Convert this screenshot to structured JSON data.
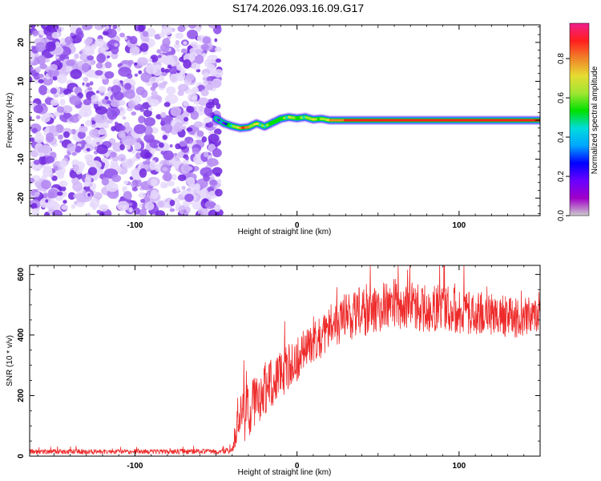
{
  "title": "S174.2026.093.16.09.G17",
  "colors": {
    "snr_line": "#ee2b2b",
    "axis": "#000000",
    "noise_dots": [
      "#e6d9fb",
      "#d2b8f8",
      "#b184f2",
      "#8d4dea",
      "#6e24de"
    ],
    "colormap": [
      "#cccccc",
      "#a000c8",
      "#6a00ff",
      "#0000ff",
      "#00a6ff",
      "#00dcdc",
      "#00e000",
      "#a0e632",
      "#e6dc32",
      "#f08228",
      "#ff1e1e",
      "#f01e8c"
    ]
  },
  "chart_data": [
    {
      "type": "heatmap",
      "title": "S174.2026.093.16.09.G17",
      "xlabel": "Height of straight line (km)",
      "ylabel": "Frequency (Hz)",
      "xlim": [
        -165,
        150
      ],
      "ylim": [
        -24.5,
        24.5
      ],
      "xticks": [
        -100,
        0,
        100
      ],
      "yticks": [
        -20,
        -10,
        0,
        10,
        20
      ],
      "noise_region_x": [
        -165,
        -48
      ],
      "ridge": {
        "x": [
          -50,
          -45,
          -40,
          -35,
          -30,
          -25,
          -20,
          -15,
          -10,
          -5,
          0,
          5,
          10,
          15,
          20,
          30,
          50,
          80,
          110,
          150
        ],
        "freq_hz": [
          0.5,
          -0.8,
          -1.5,
          -2.0,
          -1.8,
          -0.8,
          -1.6,
          -0.6,
          0.4,
          0.8,
          0.5,
          0.8,
          0.2,
          0.4,
          0.0,
          0.0,
          0.0,
          0.0,
          0.0,
          0.0
        ],
        "amplitude": [
          0.3,
          0.35,
          0.65,
          0.85,
          0.75,
          0.65,
          0.55,
          0.6,
          0.55,
          0.65,
          0.6,
          0.55,
          0.65,
          0.6,
          0.8,
          0.9,
          0.95,
          0.95,
          0.95,
          0.95
        ]
      },
      "colorbar": {
        "label": "Normalized spectral amplitude",
        "range": [
          0.0,
          0.98
        ],
        "ticks": [
          "0.0",
          "0.2",
          "0.4",
          "0.6",
          "0.8"
        ],
        "tick_values": [
          0.0,
          0.2,
          0.4,
          0.6,
          0.8
        ]
      }
    },
    {
      "type": "line",
      "xlabel": "Height of straight line (km)",
      "ylabel": "SNR (10 * v/v)",
      "xlim": [
        -165,
        150
      ],
      "ylim": [
        0,
        630
      ],
      "xticks": [
        -100,
        0,
        100
      ],
      "yticks": [
        0,
        200,
        400,
        600
      ],
      "series": [
        {
          "name": "SNR",
          "x": [
            -165,
            -100,
            -50,
            -40,
            -39,
            -37,
            -35,
            -30,
            -25,
            -20,
            -10,
            0,
            10,
            20,
            25,
            30,
            40,
            50,
            60,
            70,
            80,
            90,
            100,
            110,
            120,
            130,
            140,
            150
          ],
          "mean": [
            15,
            15,
            15,
            18,
            60,
            110,
            120,
            150,
            180,
            220,
            270,
            320,
            380,
            410,
            440,
            460,
            480,
            490,
            500,
            495,
            490,
            490,
            480,
            470,
            465,
            460,
            460,
            460
          ],
          "amplitude": [
            8,
            8,
            9,
            10,
            40,
            90,
            95,
            90,
            85,
            85,
            80,
            75,
            70,
            70,
            75,
            80,
            85,
            85,
            85,
            80,
            80,
            75,
            75,
            70,
            70,
            70,
            65,
            60
          ]
        }
      ]
    }
  ]
}
